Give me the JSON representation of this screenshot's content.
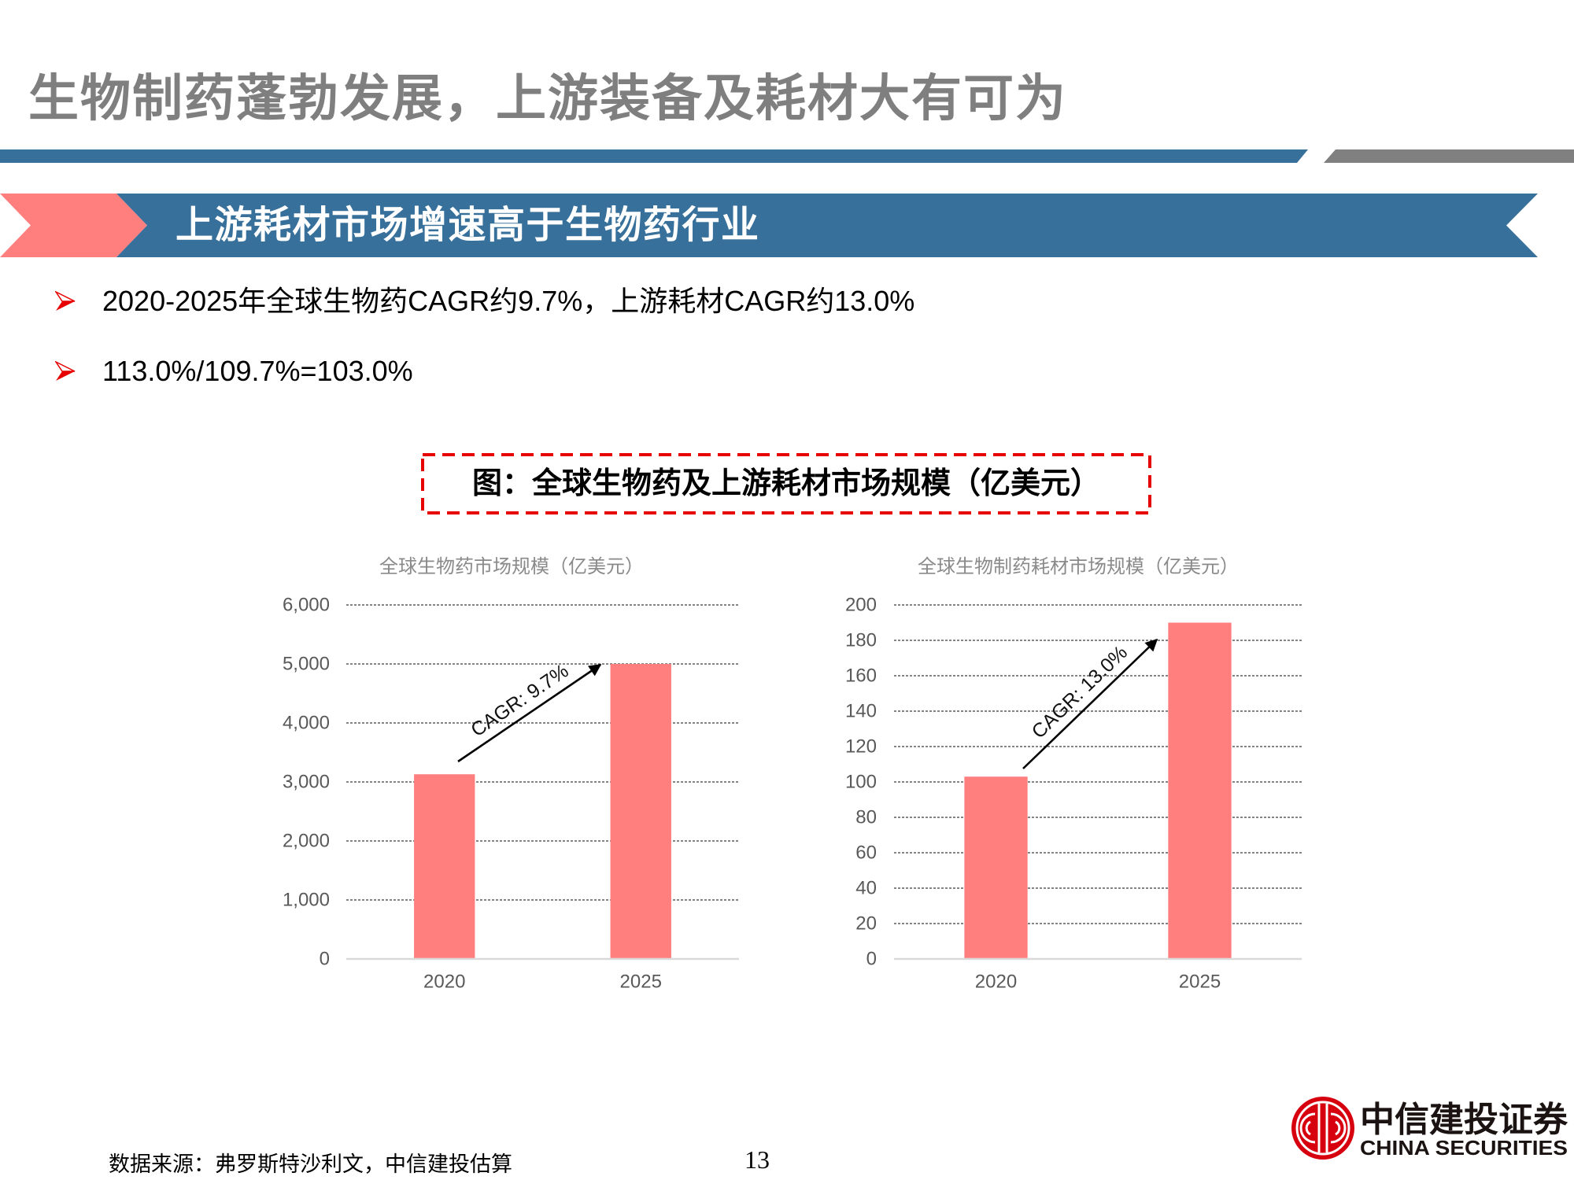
{
  "slide": {
    "title": "生物制药蓬勃发展，上游装备及耗材大有可为",
    "section_heading": "上游耗材市场增速高于生物药行业",
    "bullets": [
      {
        "icon": "arrow-bullet-icon",
        "text": "2020-2025年全球生物药CAGR约9.7%，上游耗材CAGR约13.0%"
      },
      {
        "icon": "arrow-bullet-icon",
        "text": "113.0%/109.7%=103.0%"
      }
    ],
    "figure_caption": "图：全球生物药及上游耗材市场规模（亿美元）",
    "source_note": "数据来源：弗罗斯特沙利文，中信建投估算",
    "page_number": "13",
    "logo": {
      "icon": "citic-logo-icon",
      "name_cn": "中信建投证券",
      "name_en": "CHINA SECURITIES"
    }
  },
  "colors": {
    "title_gray": "#7f7f7f",
    "band_blue": "#37709a",
    "band_gray": "#808080",
    "banner_pink": "#ff7f7f",
    "bullet_red": "#e60000",
    "caption_border": "#e60000",
    "bar": "#ff7f7f",
    "logo_red": "#d7000f"
  },
  "chart_data": [
    {
      "type": "bar",
      "title": "全球生物药市场规模（亿美元）",
      "categories": [
        "2020",
        "2025"
      ],
      "values": [
        3130,
        5000
      ],
      "xlabel": "",
      "ylabel": "",
      "ylim": [
        0,
        6000
      ],
      "yticks": [
        0,
        1000,
        2000,
        3000,
        4000,
        5000,
        6000
      ],
      "ytick_labels": [
        "0",
        "1,000",
        "2,000",
        "3,000",
        "4,000",
        "5,000",
        "6,000"
      ],
      "grid": true,
      "legend": null,
      "bar_color": "#ff7f7f",
      "annotations": [
        {
          "type": "arrow",
          "text": "CAGR: 9.7%",
          "from_category": "2020",
          "to_category": "2025"
        }
      ]
    },
    {
      "type": "bar",
      "title": "全球生物制药耗材市场规模（亿美元）",
      "categories": [
        "2020",
        "2025"
      ],
      "values": [
        103,
        190
      ],
      "xlabel": "",
      "ylabel": "",
      "ylim": [
        0,
        200
      ],
      "yticks": [
        0,
        20,
        40,
        60,
        80,
        100,
        120,
        140,
        160,
        180,
        200
      ],
      "ytick_labels": [
        "0",
        "20",
        "40",
        "60",
        "80",
        "100",
        "120",
        "140",
        "160",
        "180",
        "200"
      ],
      "grid": true,
      "legend": null,
      "bar_color": "#ff7f7f",
      "annotations": [
        {
          "type": "arrow",
          "text": "CAGR: 13.0%",
          "from_category": "2020",
          "to_category": "2025"
        }
      ]
    }
  ]
}
